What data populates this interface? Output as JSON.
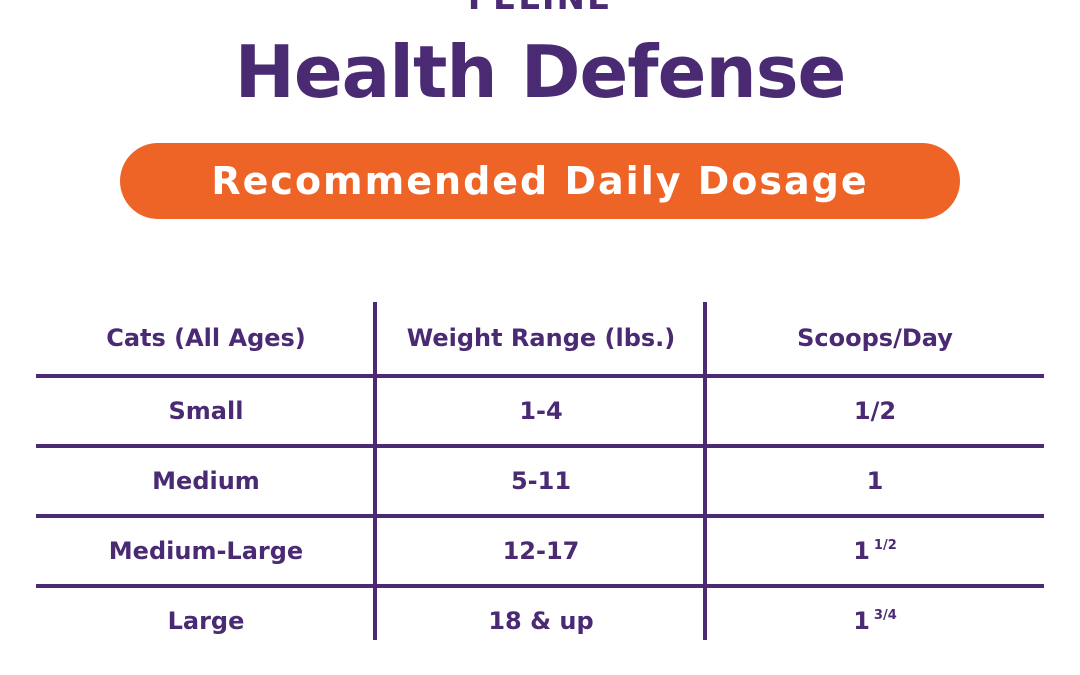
{
  "brand": {
    "eyebrow": "FELINE",
    "title": "Health Defense"
  },
  "banner": {
    "label": "Recommended Daily Dosage",
    "color": "#ee6326"
  },
  "colors": {
    "primary": "#4a2a73",
    "accent": "#ee6326"
  },
  "table": {
    "headers": [
      "Cats (All Ages)",
      "Weight Range (lbs.)",
      "Scoops/Day"
    ],
    "rows": [
      {
        "size": "Small",
        "weight": "1-4",
        "scoops_whole": "1/2",
        "scoops_fraction": ""
      },
      {
        "size": "Medium",
        "weight": "5-11",
        "scoops_whole": "1",
        "scoops_fraction": ""
      },
      {
        "size": "Medium-Large",
        "weight": "12-17",
        "scoops_whole": "1",
        "scoops_fraction": "1/2"
      },
      {
        "size": "Large",
        "weight": "18 & up",
        "scoops_whole": "1",
        "scoops_fraction": "3/4"
      }
    ]
  }
}
